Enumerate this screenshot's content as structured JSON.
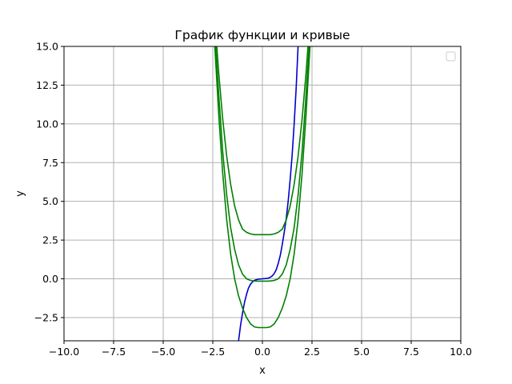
{
  "chart_data": {
    "type": "line",
    "title": "График функции и кривые",
    "xlabel": "x",
    "ylabel": "y",
    "xlim": [
      -10,
      10
    ],
    "ylim": [
      -4,
      15
    ],
    "grid": true,
    "legend": {
      "placement": "top-right",
      "entries": []
    },
    "x_ticks": [
      -10,
      -7.5,
      -5,
      -2.5,
      0,
      2.5,
      5,
      7.5,
      10
    ],
    "x_tick_labels": [
      "−10.0",
      "−7.5",
      "−5.0",
      "−2.5",
      "0.0",
      "2.5",
      "5.0",
      "7.5",
      "10.0"
    ],
    "y_ticks": [
      -2.5,
      0,
      2.5,
      5,
      7.5,
      10,
      12.5,
      15
    ],
    "y_tick_labels": [
      "−2.5",
      "0.0",
      "2.5",
      "5.0",
      "7.5",
      "10.0",
      "12.5",
      "15.0"
    ],
    "series": [
      {
        "color": "#0000cc",
        "x": [
          -1.2,
          -1.1,
          -1.0,
          -0.9,
          -0.8,
          -0.7,
          -0.6,
          -0.5,
          -0.4,
          -0.3,
          -0.2,
          -0.1,
          0.0,
          0.1,
          0.2,
          0.3,
          0.4,
          0.5,
          0.6,
          0.7,
          0.8,
          0.9,
          1.0,
          1.1,
          1.2,
          1.3,
          1.4,
          1.5,
          1.6,
          1.7,
          1.8
        ],
        "y": [
          -4.0,
          -3.0,
          -2.2,
          -1.5,
          -1.0,
          -0.6,
          -0.35,
          -0.2,
          -0.1,
          -0.05,
          -0.02,
          -0.01,
          0.0,
          0.01,
          0.02,
          0.05,
          0.1,
          0.2,
          0.35,
          0.6,
          1.0,
          1.5,
          2.2,
          3.0,
          3.9,
          5.0,
          6.4,
          8.0,
          10.0,
          12.3,
          15.0
        ]
      },
      {
        "color": "#008000",
        "x": [
          -2.36,
          -2.2,
          -2.0,
          -1.8,
          -1.6,
          -1.4,
          -1.2,
          -1.0,
          -0.8,
          -0.6,
          -0.4,
          -0.2,
          0.0,
          0.2,
          0.4,
          0.6,
          0.8,
          1.0,
          1.2,
          1.4,
          1.6,
          1.8,
          2.0,
          2.2,
          2.36
        ],
        "y": [
          15.0,
          11.9,
          8.2,
          5.4,
          3.3,
          1.9,
          0.9,
          0.3,
          0.0,
          -0.1,
          -0.14,
          -0.15,
          -0.15,
          -0.15,
          -0.14,
          -0.1,
          0.0,
          0.3,
          0.9,
          1.9,
          3.3,
          5.4,
          8.2,
          11.9,
          15.0
        ]
      },
      {
        "color": "#008000",
        "x": [
          -2.3,
          -2.2,
          -2.0,
          -1.8,
          -1.6,
          -1.4,
          -1.2,
          -1.0,
          -0.8,
          -0.6,
          -0.4,
          -0.2,
          0.0,
          0.2,
          0.4,
          0.6,
          0.8,
          1.0,
          1.2,
          1.4,
          1.6,
          1.8,
          2.0,
          2.2,
          2.3
        ],
        "y": [
          15.0,
          13.3,
          10.3,
          7.9,
          6.1,
          4.7,
          3.8,
          3.2,
          3.0,
          2.9,
          2.85,
          2.85,
          2.85,
          2.85,
          2.85,
          2.9,
          3.0,
          3.2,
          3.8,
          4.7,
          6.1,
          7.9,
          10.3,
          13.3,
          15.0
        ]
      },
      {
        "color": "#008000",
        "x": [
          -2.4,
          -2.3,
          -2.2,
          -2.0,
          -1.8,
          -1.6,
          -1.4,
          -1.2,
          -1.0,
          -0.8,
          -0.6,
          -0.4,
          -0.2,
          0.0,
          0.2,
          0.4,
          0.6,
          0.8,
          1.0,
          1.2,
          1.4,
          1.6,
          1.8,
          2.0,
          2.2,
          2.3,
          2.4
        ],
        "y": [
          15.0,
          12.8,
          10.6,
          6.8,
          3.8,
          1.6,
          0.0,
          -1.1,
          -1.9,
          -2.5,
          -2.9,
          -3.1,
          -3.15,
          -3.15,
          -3.15,
          -3.1,
          -2.9,
          -2.5,
          -1.9,
          -1.1,
          0.0,
          1.6,
          3.8,
          6.8,
          10.6,
          12.8,
          15.0
        ]
      }
    ]
  }
}
